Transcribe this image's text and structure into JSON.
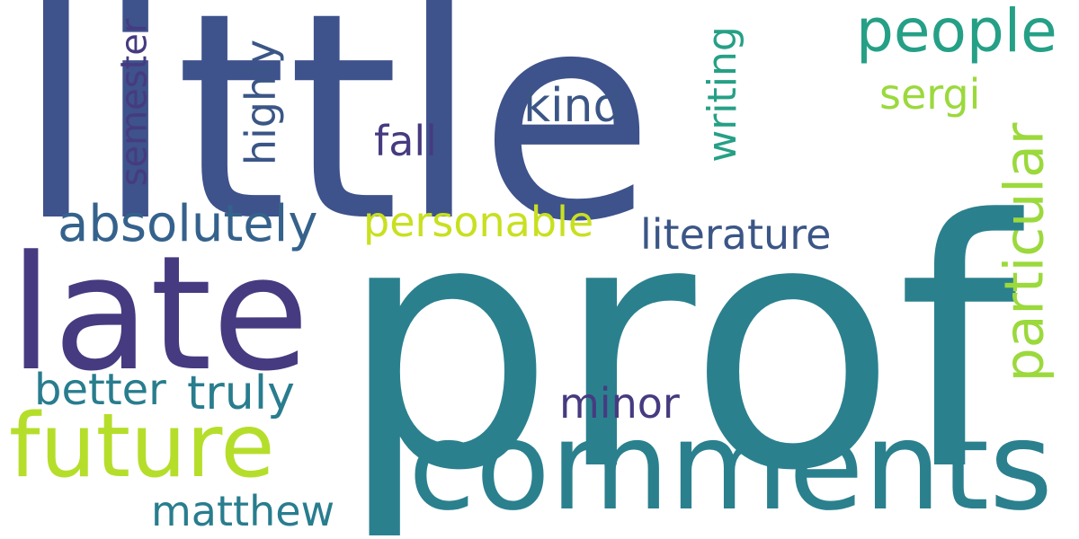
{
  "colors": {
    "background": "#ffffff",
    "navy": "#3e528c",
    "purple": "#463b80",
    "teal": "#2b808e",
    "teal_dark": "#287d8e",
    "blue_grey": "#35628c",
    "green": "#25a086",
    "lime": "#b5de2b",
    "yellow_lime": "#c8e020",
    "light_green": "#9bd93c",
    "slate": "#3b5686"
  },
  "words": [
    {
      "key": "little",
      "text": "little",
      "color": "navy"
    },
    {
      "key": "prof",
      "text": "prof",
      "color": "teal"
    },
    {
      "key": "late",
      "text": "late",
      "color": "purple"
    },
    {
      "key": "comments",
      "text": "comments",
      "color": "teal"
    },
    {
      "key": "future",
      "text": "future",
      "color": "lime"
    },
    {
      "key": "people",
      "text": "people",
      "color": "green"
    },
    {
      "key": "particular",
      "text": "particular",
      "color": "light_green"
    },
    {
      "key": "absolutely",
      "text": "absolutely",
      "color": "blue_grey"
    },
    {
      "key": "personable",
      "text": "personable",
      "color": "yellow_lime"
    },
    {
      "key": "literature",
      "text": "literature",
      "color": "slate"
    },
    {
      "key": "kind",
      "text": "kind",
      "color": "slate"
    },
    {
      "key": "fall",
      "text": "fall",
      "color": "purple"
    },
    {
      "key": "sergi",
      "text": "sergi",
      "color": "light_green"
    },
    {
      "key": "semester",
      "text": "semester",
      "color": "purple"
    },
    {
      "key": "highly",
      "text": "highly",
      "color": "slate"
    },
    {
      "key": "writing",
      "text": "writing",
      "color": "green"
    },
    {
      "key": "better",
      "text": "better",
      "color": "teal_dark"
    },
    {
      "key": "truly",
      "text": "truly",
      "color": "teal_dark"
    },
    {
      "key": "minor",
      "text": "minor",
      "color": "purple"
    },
    {
      "key": "matthew",
      "text": "matthew",
      "color": "teal_dark"
    }
  ]
}
